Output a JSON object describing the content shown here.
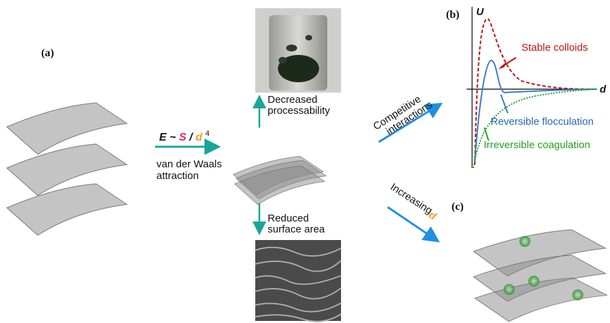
{
  "labels": {
    "a": "(a)",
    "b": "(b)",
    "c": "(c)"
  },
  "formula": {
    "E": "E",
    "tilde": "~",
    "S": "S",
    "slash": "/",
    "d": "d",
    "exp": "4"
  },
  "attraction": [
    "van der Waals",
    "attraction"
  ],
  "top_arrow": [
    "Decreased",
    "processability"
  ],
  "bottom_arrow": [
    "Reduced",
    "surface area"
  ],
  "upper_arrow": [
    "Competitive",
    "interactions"
  ],
  "lower_arrow": {
    "text": "Increasing",
    "d": "d"
  },
  "plot": {
    "y_label": "U",
    "x_label": "d",
    "curves": [
      "Stable colloids",
      "Reversible flocculation",
      "Irreversible coagulation"
    ]
  }
}
